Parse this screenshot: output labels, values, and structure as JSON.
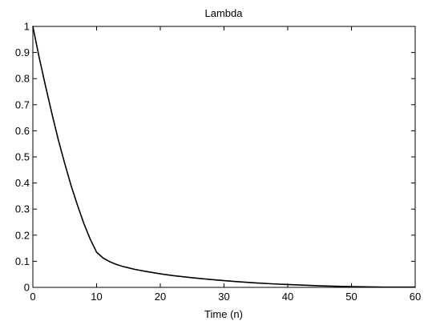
{
  "chart_data": {
    "type": "line",
    "title": "Lambda",
    "xlabel": "Time (n)",
    "ylabel": "",
    "xlim": [
      0,
      60
    ],
    "ylim": [
      0,
      1
    ],
    "x_ticks": [
      0,
      10,
      20,
      30,
      40,
      50,
      60
    ],
    "y_ticks": [
      0,
      0.1,
      0.2,
      0.3,
      0.4,
      0.5,
      0.6,
      0.7,
      0.8,
      0.9,
      1
    ],
    "grid": false,
    "legend": "none",
    "line_color": "#000000",
    "series": [
      {
        "x": [
          0,
          1,
          2,
          3,
          4,
          5,
          6,
          7,
          8,
          9,
          10,
          11,
          12,
          13,
          14,
          15,
          16,
          18,
          20,
          22,
          25,
          28,
          30,
          32,
          35,
          38,
          40,
          42,
          45,
          48,
          50,
          52,
          55,
          58,
          60
        ],
        "values": [
          1.0,
          0.88,
          0.77,
          0.665,
          0.565,
          0.475,
          0.39,
          0.315,
          0.245,
          0.185,
          0.135,
          0.113,
          0.099,
          0.089,
          0.081,
          0.075,
          0.069,
          0.06,
          0.052,
          0.045,
          0.037,
          0.03,
          0.026,
          0.022,
          0.017,
          0.013,
          0.011,
          0.009,
          0.006,
          0.004,
          0.003,
          0.002,
          0.001,
          0.001,
          0.001
        ]
      }
    ]
  }
}
